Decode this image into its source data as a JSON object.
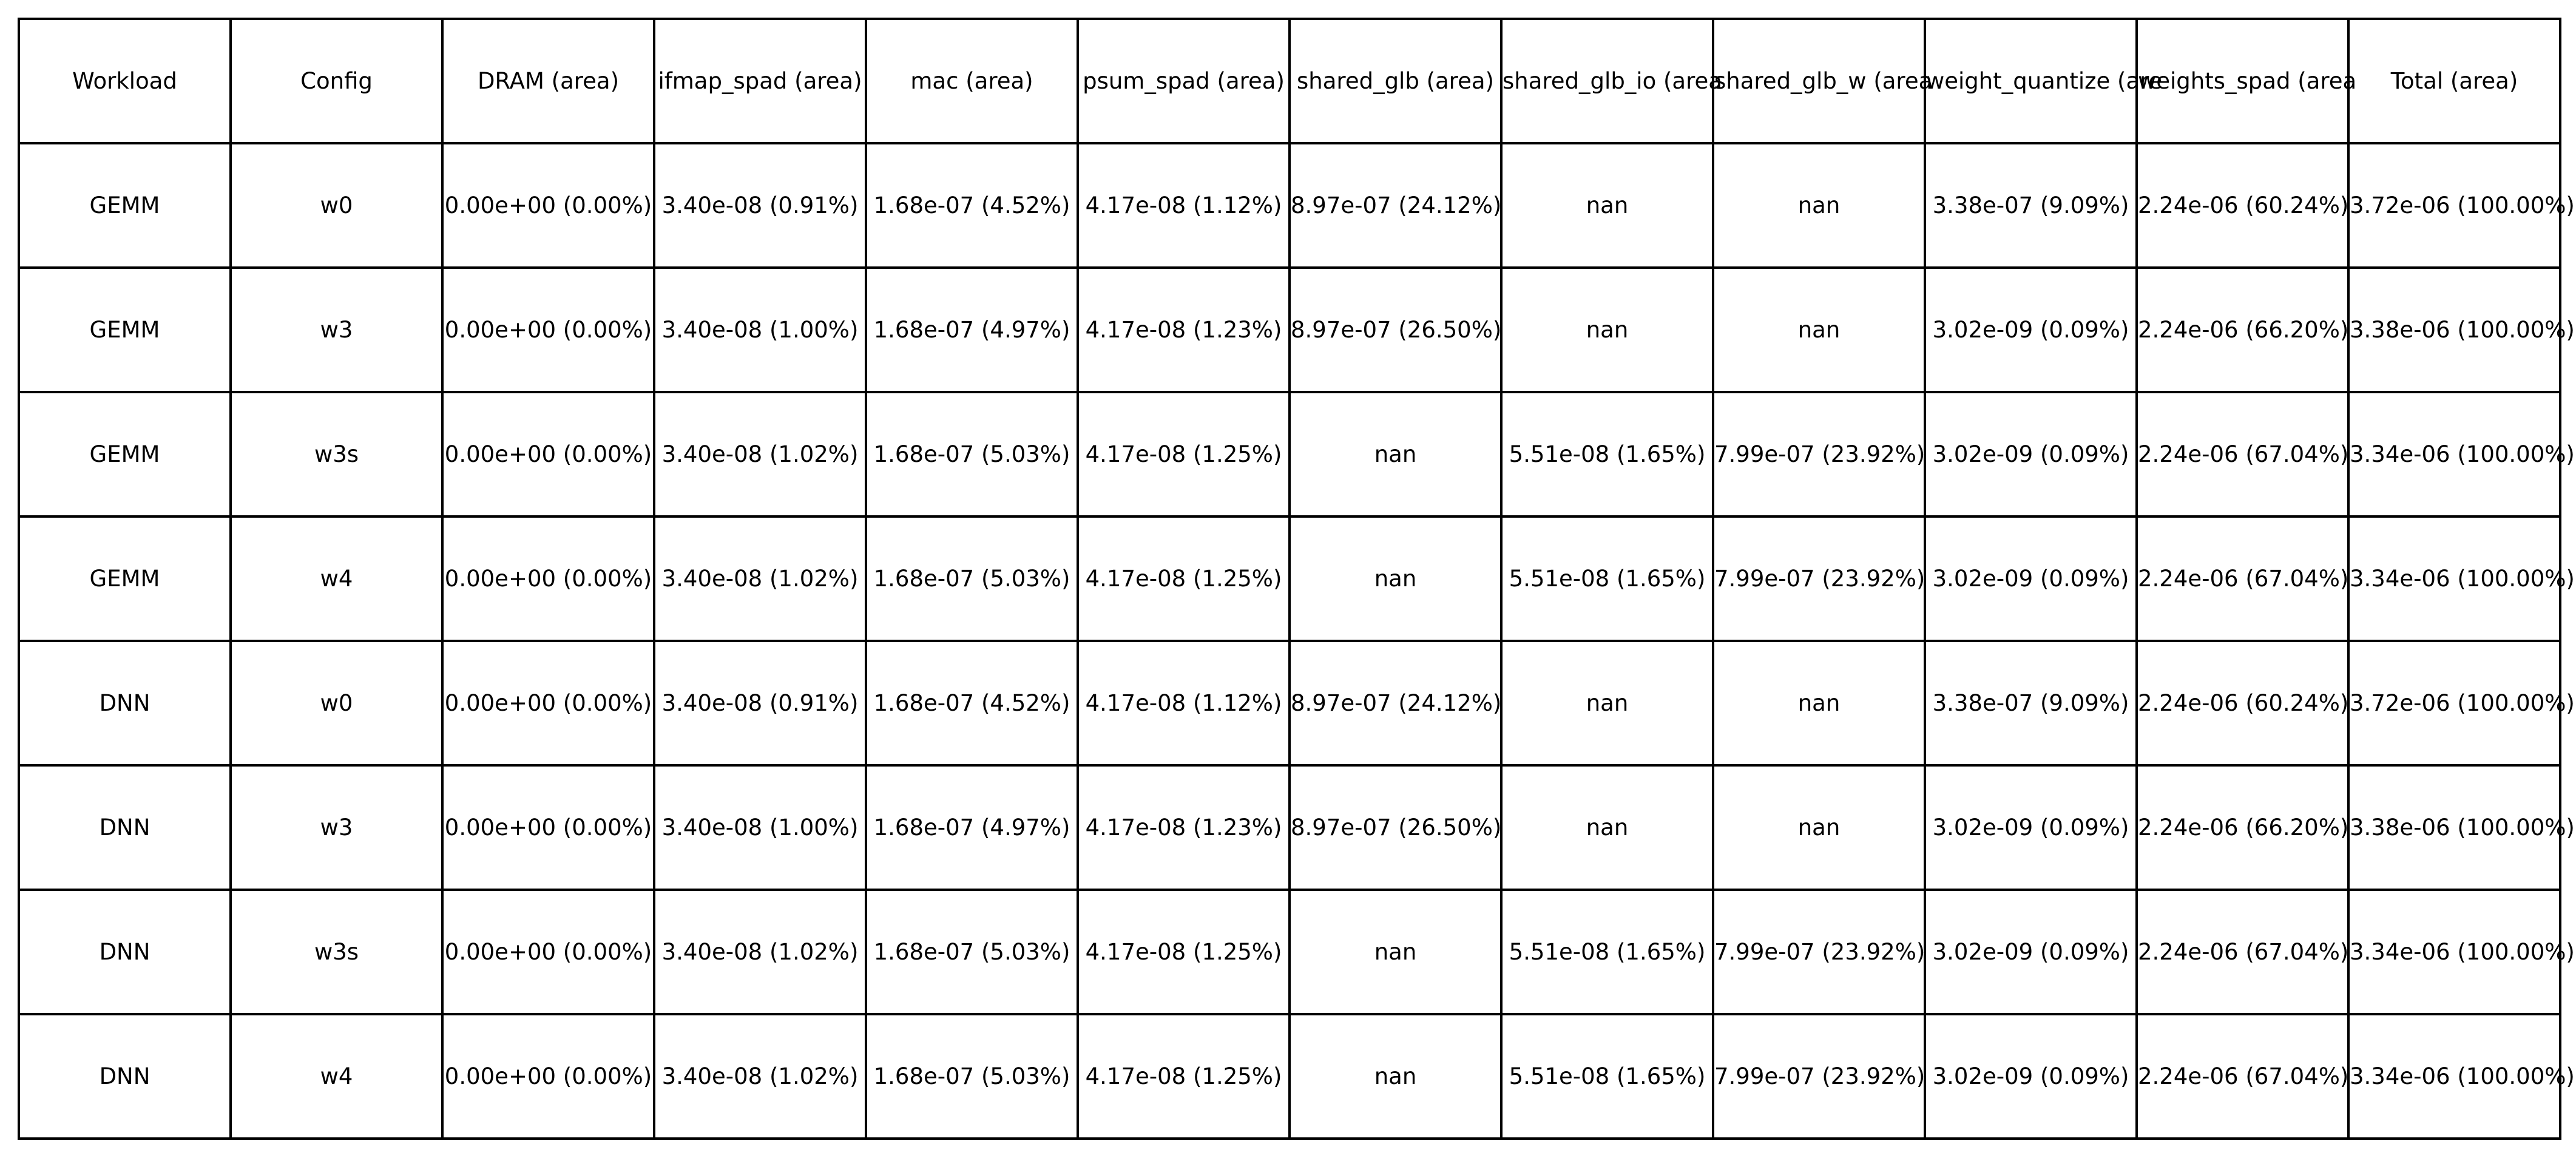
{
  "chart_data": {
    "type": "table",
    "columns": [
      "Workload",
      "Config",
      "DRAM (area)",
      "ifmap_spad (area)",
      "mac (area)",
      "psum_spad (area)",
      "shared_glb (area)",
      "shared_glb_io (area",
      "shared_glb_w (area",
      "weight_quantize (are",
      "weights_spad (area",
      "Total (area)"
    ],
    "rows": [
      [
        "GEMM",
        "w0",
        "0.00e+00 (0.00%)",
        "3.40e-08 (0.91%)",
        "1.68e-07 (4.52%)",
        "4.17e-08 (1.12%)",
        "8.97e-07 (24.12%)",
        "nan",
        "nan",
        "3.38e-07 (9.09%)",
        "2.24e-06 (60.24%)",
        "3.72e-06 (100.00%)"
      ],
      [
        "GEMM",
        "w3",
        "0.00e+00 (0.00%)",
        "3.40e-08 (1.00%)",
        "1.68e-07 (4.97%)",
        "4.17e-08 (1.23%)",
        "8.97e-07 (26.50%)",
        "nan",
        "nan",
        "3.02e-09 (0.09%)",
        "2.24e-06 (66.20%)",
        "3.38e-06 (100.00%)"
      ],
      [
        "GEMM",
        "w3s",
        "0.00e+00 (0.00%)",
        "3.40e-08 (1.02%)",
        "1.68e-07 (5.03%)",
        "4.17e-08 (1.25%)",
        "nan",
        "5.51e-08 (1.65%)",
        "7.99e-07 (23.92%)",
        "3.02e-09 (0.09%)",
        "2.24e-06 (67.04%)",
        "3.34e-06 (100.00%)"
      ],
      [
        "GEMM",
        "w4",
        "0.00e+00 (0.00%)",
        "3.40e-08 (1.02%)",
        "1.68e-07 (5.03%)",
        "4.17e-08 (1.25%)",
        "nan",
        "5.51e-08 (1.65%)",
        "7.99e-07 (23.92%)",
        "3.02e-09 (0.09%)",
        "2.24e-06 (67.04%)",
        "3.34e-06 (100.00%)"
      ],
      [
        "DNN",
        "w0",
        "0.00e+00 (0.00%)",
        "3.40e-08 (0.91%)",
        "1.68e-07 (4.52%)",
        "4.17e-08 (1.12%)",
        "8.97e-07 (24.12%)",
        "nan",
        "nan",
        "3.38e-07 (9.09%)",
        "2.24e-06 (60.24%)",
        "3.72e-06 (100.00%)"
      ],
      [
        "DNN",
        "w3",
        "0.00e+00 (0.00%)",
        "3.40e-08 (1.00%)",
        "1.68e-07 (4.97%)",
        "4.17e-08 (1.23%)",
        "8.97e-07 (26.50%)",
        "nan",
        "nan",
        "3.02e-09 (0.09%)",
        "2.24e-06 (66.20%)",
        "3.38e-06 (100.00%)"
      ],
      [
        "DNN",
        "w3s",
        "0.00e+00 (0.00%)",
        "3.40e-08 (1.02%)",
        "1.68e-07 (5.03%)",
        "4.17e-08 (1.25%)",
        "nan",
        "5.51e-08 (1.65%)",
        "7.99e-07 (23.92%)",
        "3.02e-09 (0.09%)",
        "2.24e-06 (67.04%)",
        "3.34e-06 (100.00%)"
      ],
      [
        "DNN",
        "w4",
        "0.00e+00 (0.00%)",
        "3.40e-08 (1.02%)",
        "1.68e-07 (5.03%)",
        "4.17e-08 (1.25%)",
        "nan",
        "5.51e-08 (1.65%)",
        "7.99e-07 (23.92%)",
        "3.02e-09 (0.09%)",
        "2.24e-06 (67.04%)",
        "3.34e-06 (100.00%)"
      ]
    ]
  }
}
